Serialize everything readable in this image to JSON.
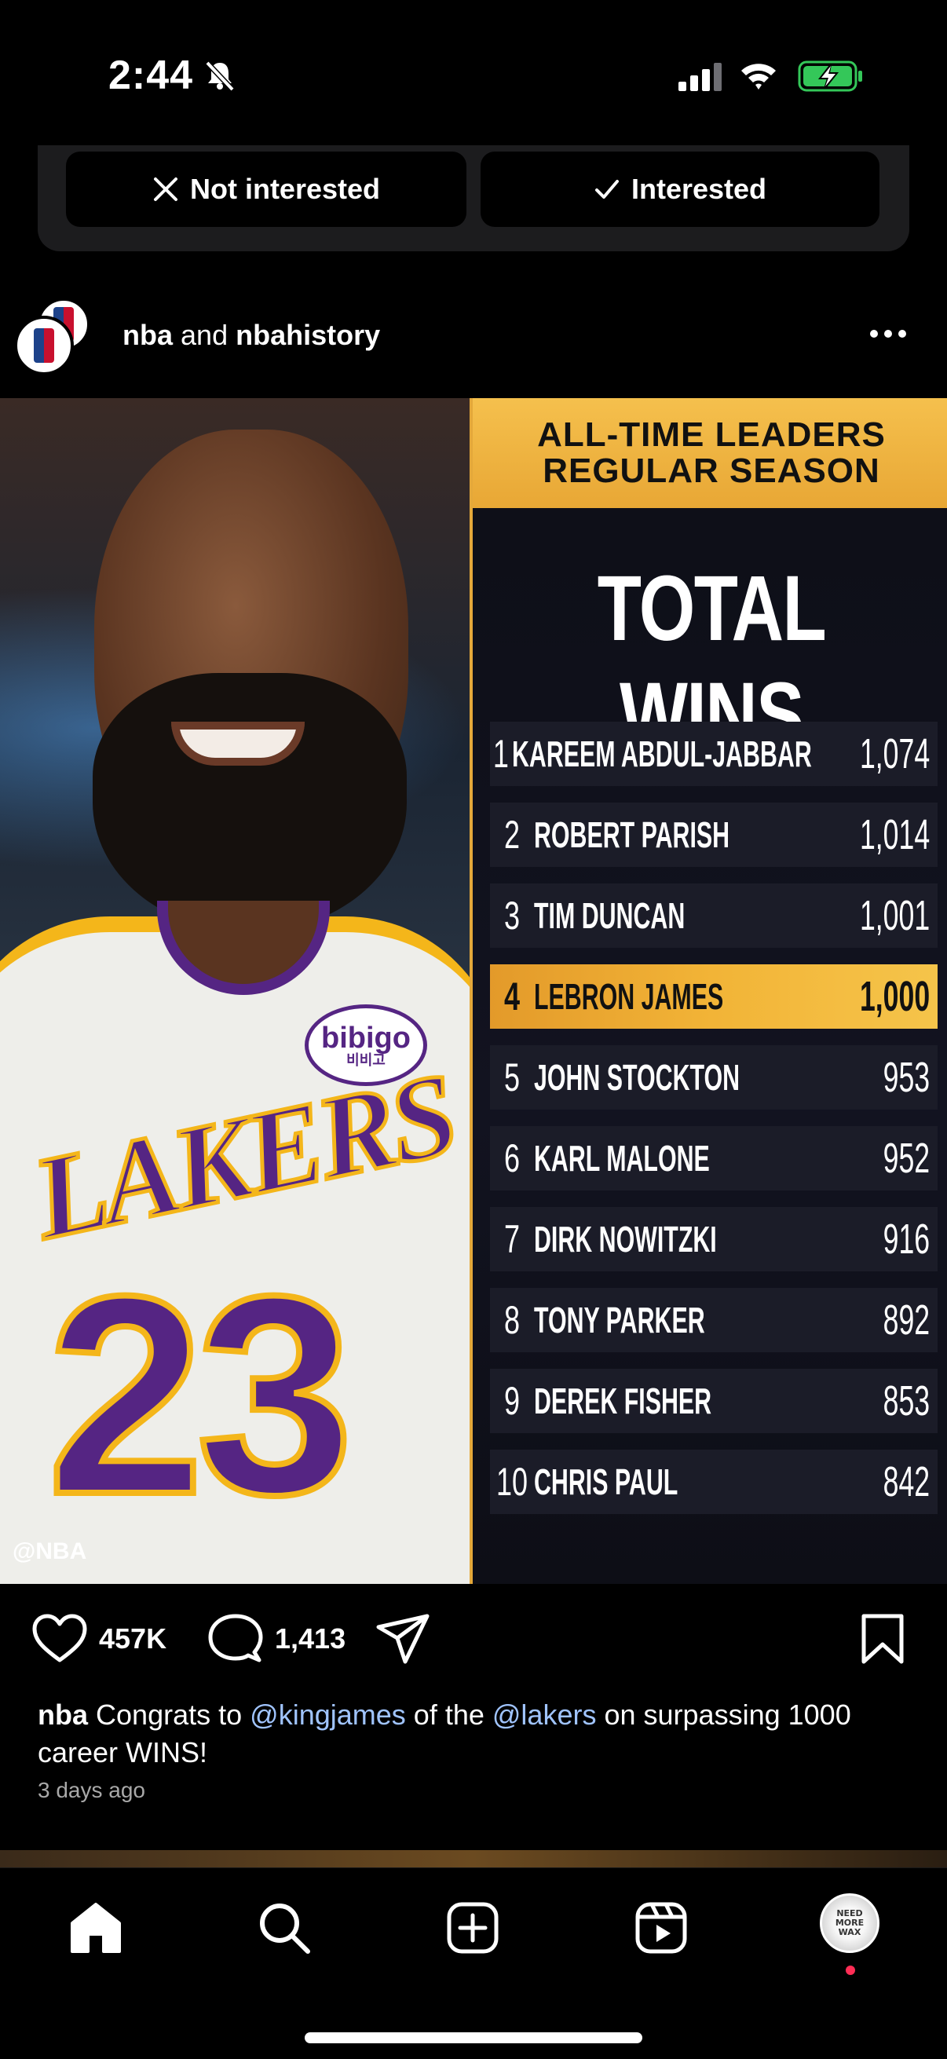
{
  "status_bar": {
    "time": "2:44",
    "icons": [
      "bell-slash-icon",
      "cellular-signal-icon",
      "wifi-icon",
      "battery-charging-icon"
    ]
  },
  "suggestion": {
    "not_interested_label": "Not interested",
    "interested_label": "Interested"
  },
  "post": {
    "user1": "nba",
    "connector": "and",
    "user2": "nbahistory",
    "image": {
      "header_line1": "ALL-TIME LEADERS",
      "header_line2": "REGULAR SEASON",
      "title": "TOTAL WINS",
      "watermark": "@NBA",
      "patch_text": "bibigo",
      "patch_sub": "비비고",
      "jersey_text": "LAKERS",
      "jersey_number": "23",
      "rows": [
        {
          "rank": "1",
          "name": "KAREEM ABDUL-JABBAR",
          "wins": "1,074"
        },
        {
          "rank": "2",
          "name": "ROBERT PARISH",
          "wins": "1,014"
        },
        {
          "rank": "3",
          "name": "TIM DUNCAN",
          "wins": "1,001"
        },
        {
          "rank": "4",
          "name": "LEBRON JAMES",
          "wins": "1,000"
        },
        {
          "rank": "5",
          "name": "JOHN STOCKTON",
          "wins": "953"
        },
        {
          "rank": "6",
          "name": "KARL MALONE",
          "wins": "952"
        },
        {
          "rank": "7",
          "name": "DIRK NOWITZKI",
          "wins": "916"
        },
        {
          "rank": "8",
          "name": "TONY PARKER",
          "wins": "892"
        },
        {
          "rank": "9",
          "name": "DEREK FISHER",
          "wins": "853"
        },
        {
          "rank": "10",
          "name": "CHRIS PAUL",
          "wins": "842"
        }
      ],
      "highlight_color": "#f2b437",
      "header_color": "#f5c04d"
    },
    "likes": "457K",
    "comments": "1,413",
    "caption": {
      "user": "nba",
      "text1": "Congrats to",
      "mention1": "@kingjames",
      "text2": "of the",
      "mention2": "@lakers",
      "text3": "on surpassing 1000 career WINS!"
    },
    "timestamp": "3 days ago"
  },
  "nav": {
    "items": [
      "home-icon",
      "search-icon",
      "create-icon",
      "reels-icon",
      "profile-avatar"
    ],
    "profile_text": "NEED MORE WAX"
  },
  "colors": {
    "mention": "#a0c4ff",
    "notification": "#ff2d55"
  }
}
